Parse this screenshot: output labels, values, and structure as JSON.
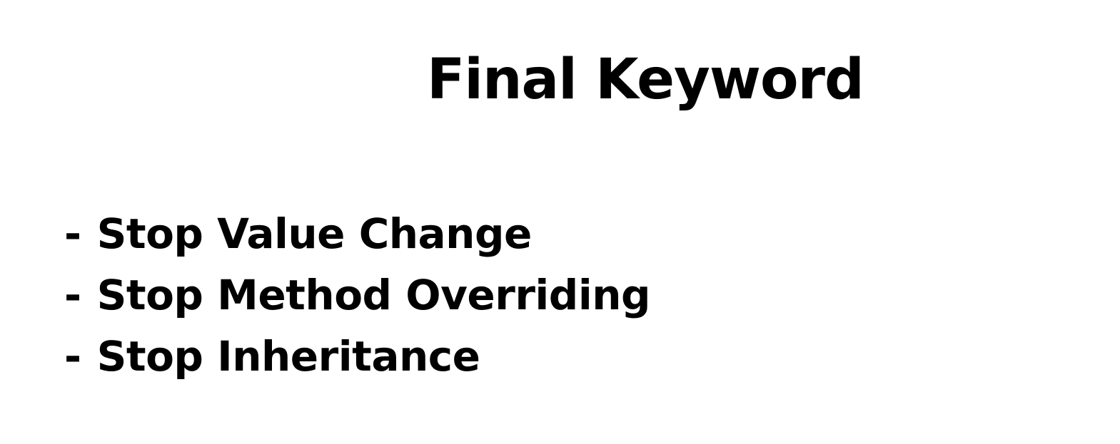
{
  "slide": {
    "title": "Final Keyword",
    "bullet_marker": "-",
    "bullets": [
      "Stop Value Change",
      "Stop Method Overriding",
      "Stop Inheritance"
    ]
  }
}
